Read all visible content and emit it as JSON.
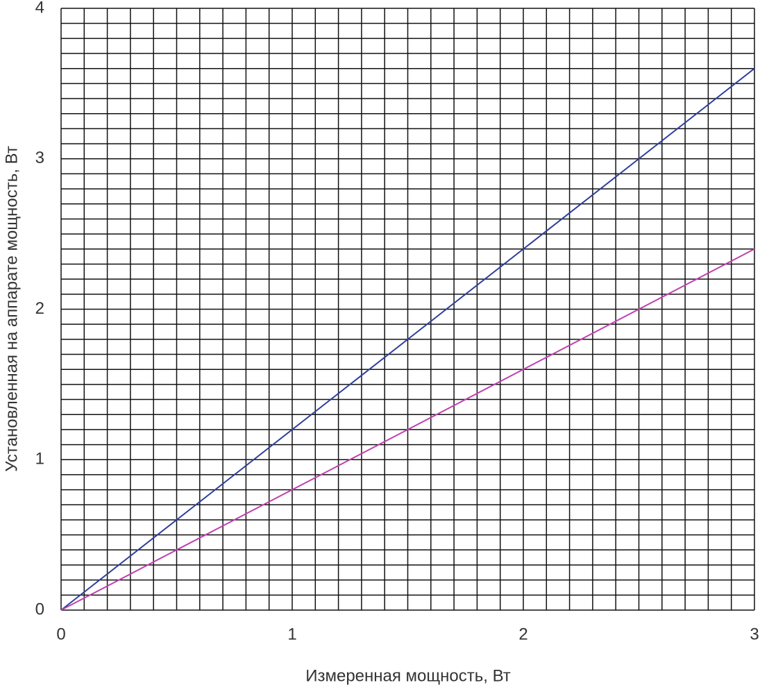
{
  "chart_data": {
    "type": "line",
    "xlabel": "Измеренная мощность, Вт",
    "ylabel": "Установленная на аппарате мощность, Вт",
    "x": [
      0,
      3
    ],
    "series": [
      {
        "color": "#2e3f9c",
        "values": [
          0,
          3.6
        ]
      },
      {
        "color": "#c040b0",
        "values": [
          0,
          2.4
        ]
      }
    ],
    "xlim": [
      0,
      3
    ],
    "ylim": [
      0,
      4
    ],
    "xticks": [
      0,
      1,
      2,
      3
    ],
    "yticks": [
      0,
      1,
      2,
      3,
      4
    ],
    "grid": true,
    "xgrid": [
      0,
      0.1,
      0.2,
      0.3,
      0.4,
      0.5,
      0.6,
      0.7,
      0.8,
      0.9,
      1,
      1.1,
      1.2,
      1.3,
      1.4,
      1.5,
      1.6,
      1.7,
      1.8,
      1.9,
      2,
      2.1,
      2.2,
      2.3,
      2.4,
      2.5,
      2.6,
      2.7,
      2.8,
      2.9,
      3
    ],
    "ygrid": [
      0,
      0.1,
      0.2,
      0.3,
      0.4,
      0.5,
      0.6,
      0.7,
      0.8,
      0.9,
      1,
      1.1,
      1.2,
      1.3,
      1.4,
      1.5,
      1.6,
      1.7,
      1.8,
      1.9,
      2,
      2.1,
      2.2,
      2.3,
      2.4,
      2.5,
      2.6,
      2.7,
      2.8,
      2.9,
      3,
      3.1,
      3.2,
      3.3,
      3.4,
      3.5,
      3.6,
      3.7,
      3.8,
      3.9,
      4
    ]
  }
}
